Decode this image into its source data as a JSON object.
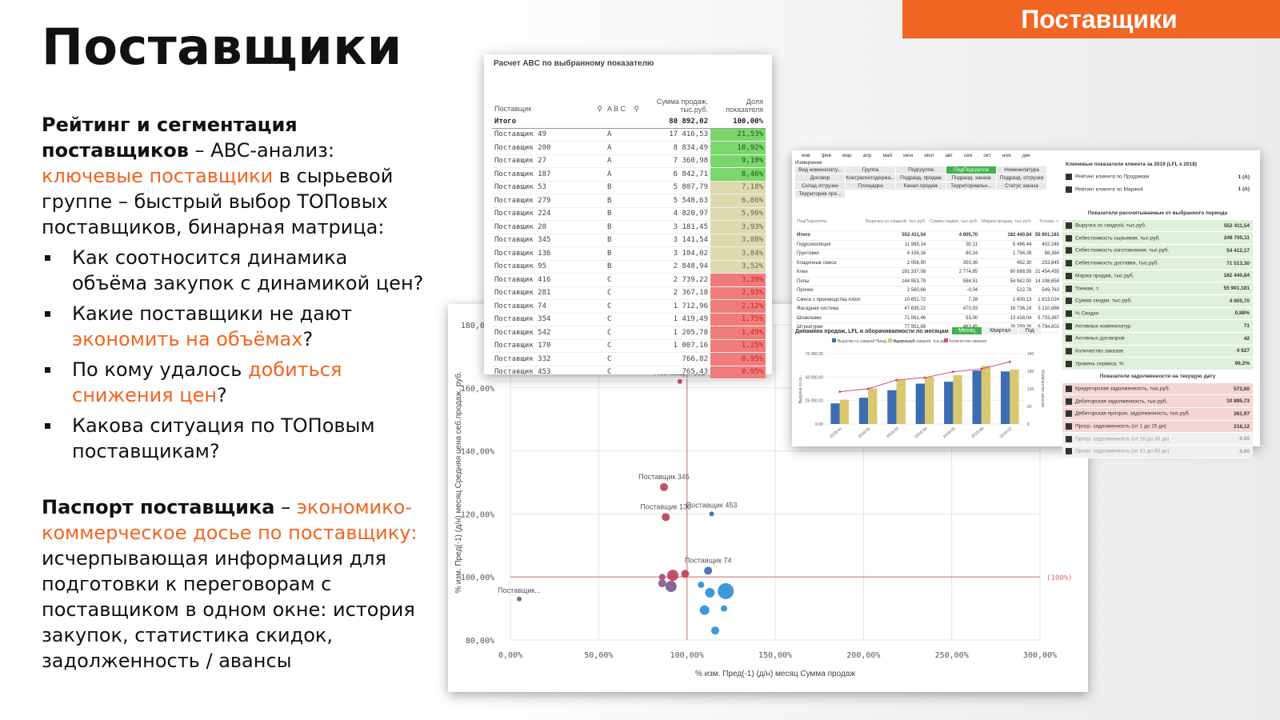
{
  "banner": "Поставщики",
  "title": "Поставщики",
  "rating": {
    "heading_bold1": "Рейтинг и сегментация",
    "heading_bold2": "поставщиков",
    "t1": " – ABC-анализ:",
    "orange1": "ключевые поставщики",
    "t2": " в сырьевой группе – быстрый выбор ТОПовых поставщиков, бинарная матрица:"
  },
  "questions": [
    {
      "a": "Как соотносится динамика объёма закупок с динамикой цен?",
      "o": "",
      "b": ""
    },
    {
      "a": "Какие поставщики не дают ",
      "o": "экономить на объёмах",
      "b": "?"
    },
    {
      "a": "По кому удалось ",
      "o": "добиться снижения цен",
      "b": "?"
    },
    {
      "a": "Какова ситуация по ТОПовым поставщикам?",
      "o": "",
      "b": ""
    }
  ],
  "passport": {
    "bold": "Паспорт поставщика",
    "dash": " – ",
    "orange": "экономико-коммерческое досье по поставщику:",
    "rest": " исчерпывающая информация для подготовки к переговорам с поставщиком в одном окне: история закупок, статистика скидок, задолженность / авансы"
  },
  "abc": {
    "title": "Расчет ABC по выбранному показателю",
    "col_supplier": "Поставщик",
    "col_abc": "A B C",
    "col_sum": "Сумма продаж, тыс.руб.",
    "col_share": "Доля показателя",
    "total_label": "Итого",
    "total_sum": "80 892,02",
    "total_share": "100,00%",
    "rows": [
      [
        "Поставщик 49",
        "A",
        "17 416,53",
        "21,53%"
      ],
      [
        "Поставщик 200",
        "A",
        "8 834,49",
        "10,92%"
      ],
      [
        "Поставщик 27",
        "A",
        "7 360,98",
        "9,10%"
      ],
      [
        "Поставщик 187",
        "A",
        "6 842,71",
        "8,46%"
      ],
      [
        "Поставщик 53",
        "B",
        "5 807,79",
        "7,18%"
      ],
      [
        "Поставщик 279",
        "B",
        "5 548,63",
        "6,86%"
      ],
      [
        "Поставщик 224",
        "B",
        "4 820,97",
        "5,96%"
      ],
      [
        "Поставщик 20",
        "B",
        "3 181,45",
        "3,93%"
      ],
      [
        "Поставщик 345",
        "B",
        "3 141,54",
        "3,88%"
      ],
      [
        "Поставщик 136",
        "B",
        "3 104,02",
        "3,84%"
      ],
      [
        "Поставщик 95",
        "B",
        "2 848,94",
        "3,52%"
      ],
      [
        "Поставщик 416",
        "C",
        "2 739,22",
        "3,39%"
      ],
      [
        "Поставщик 281",
        "C",
        "2 367,18",
        "2,93%"
      ],
      [
        "Поставщик 74",
        "C",
        "1 712,96",
        "2,12%"
      ],
      [
        "Поставщик 354",
        "C",
        "1 419,49",
        "1,75%"
      ],
      [
        "Поставщик 542",
        "C",
        "1 205,78",
        "1,49%"
      ],
      [
        "Поставщик 170",
        "C",
        "1 007,16",
        "1,25%"
      ],
      [
        "Поставщик 332",
        "C",
        "766,82",
        "0,95%"
      ],
      [
        "Поставщик 453",
        "C",
        "765,43",
        "0,95%"
      ]
    ],
    "colors": {
      "A": "#7bd66b",
      "B": "#dedaae",
      "C": "#f07b7b"
    }
  },
  "scatter": {
    "xlabel": "% изм. Пред(-1) (д/н) месяц Сумма продаж",
    "ylabel": "% изм. Пред(-1) (д/н) месяц Средняя цена себ.продаж, руб.",
    "ref_label": "(100%)",
    "x_ticks": [
      "0,00%",
      "50,00%",
      "100,00%",
      "150,00%",
      "200,00%",
      "250,00%",
      "300,00%"
    ],
    "y_ticks": [
      "80,00%",
      "100,00%",
      "120,00%",
      "140,00%",
      "160,00%",
      "180,00%"
    ],
    "labels": [
      "Поставщик 332",
      "Поставщик 345",
      "Поставщик 136",
      "Поставщик 453",
      "Поставщик 74",
      "Поставщик..."
    ]
  },
  "chart_data": {
    "type": "scatter",
    "xlabel": "% изм. Пред(-1) (д/н) месяц Сумма продаж",
    "ylabel": "% изм. Пред(-1) (д/н) месяц Средняя цена себ.продаж, руб.",
    "xlim": [
      0,
      300
    ],
    "ylim": [
      80,
      180
    ],
    "points": [
      {
        "label": "Поставщик 332",
        "x": 96,
        "y": 162,
        "r": 3,
        "c": "#c0405a"
      },
      {
        "label": "Поставщик 345",
        "x": 87,
        "y": 128.5,
        "r": 5,
        "c": "#c0405a"
      },
      {
        "label": "Поставщик 136",
        "x": 88,
        "y": 119,
        "r": 5,
        "c": "#c0405a"
      },
      {
        "label": "Поставщик 453",
        "x": 114,
        "y": 120,
        "r": 3,
        "c": "#3c6db0"
      },
      {
        "label": "Поставщик 74",
        "x": 112,
        "y": 102,
        "r": 5,
        "c": "#3c6db0"
      },
      {
        "label": "Поставщик...",
        "x": 5,
        "y": 93,
        "r": 3,
        "c": "#7a5a8a"
      },
      {
        "label": "",
        "x": 86,
        "y": 100,
        "r": 4,
        "c": "#a04a7a"
      },
      {
        "label": "",
        "x": 92,
        "y": 100.5,
        "r": 7,
        "c": "#c0405a"
      },
      {
        "label": "",
        "x": 99,
        "y": 101,
        "r": 5,
        "c": "#c0405a"
      },
      {
        "label": "",
        "x": 86,
        "y": 98,
        "r": 5,
        "c": "#8a5a8a"
      },
      {
        "label": "",
        "x": 91,
        "y": 97,
        "r": 7,
        "c": "#7a5a8a"
      },
      {
        "label": "",
        "x": 108,
        "y": 97.5,
        "r": 4,
        "c": "#2e8fd8"
      },
      {
        "label": "",
        "x": 113,
        "y": 95,
        "r": 6,
        "c": "#2e8fd8"
      },
      {
        "label": "",
        "x": 122,
        "y": 95.5,
        "r": 10,
        "c": "#2e8fd8"
      },
      {
        "label": "",
        "x": 110,
        "y": 89.5,
        "r": 6,
        "c": "#2e8fd8"
      },
      {
        "label": "",
        "x": 121,
        "y": 90,
        "r": 4,
        "c": "#2e8fd8"
      },
      {
        "label": "",
        "x": 116,
        "y": 83,
        "r": 5,
        "c": "#2e8fd8"
      }
    ],
    "ref_x": 100,
    "ref_y": 100
  },
  "dash": {
    "months": [
      "янв",
      "фев",
      "мар",
      "апр",
      "май",
      "июн",
      "июл",
      "авг",
      "сен",
      "окт",
      "ноя",
      "дек"
    ],
    "measure": "Измерение",
    "filters": [
      "Вид номенклату...",
      "Группа",
      "Подгруппа",
      "ПодПодгруппа",
      "Номенклатура",
      "Договор",
      "Контрагентодержа...",
      "Подразд. продаж",
      "Подразд. заказа",
      "Подразд. отгрузки",
      "Склад отгрузки",
      "Площадка",
      "Канал продаж",
      "Территориальн...",
      "Статус заказа",
      "Территория про..."
    ],
    "selected_filter": "ПодПодгруппа",
    "mini_head": [
      "ПодПодгруппа",
      "Выручка со скидкой, тыс.руб.",
      "Сумма скидки, тыс.руб.",
      "Маржа продаж, тыс.руб.",
      "Тоннаж, т."
    ],
    "mini_rows": [
      [
        "Итого",
        "552 411,54",
        "4 905,70",
        "182 440,84",
        "55 901,181"
      ],
      [
        "Гидроизоляция",
        "11 965,14",
        "92,11",
        "5 496,44",
        "402,246"
      ],
      [
        "Грунтовки",
        "4 156,16",
        "80,24",
        "1 794,28",
        "88,384"
      ],
      [
        "Кладочные смеси",
        "2 056,90",
        "350,36",
        "452,30",
        "253,845"
      ],
      [
        "Клеи",
        "181 337,08",
        "2 774,85",
        "60 688,59",
        "21 454,455"
      ],
      [
        "Полы",
        "144 953,79",
        "584,51",
        "54 942,00",
        "14 198,654"
      ],
      [
        "Прочее",
        "2 560,66",
        "-0,04",
        "522,78",
        "549,763"
      ],
      [
        "Смеси с производства Axton",
        "10 651,72",
        "7,28",
        "1 600,13",
        "1 613,024"
      ],
      [
        "Фасадная система",
        "47 835,22",
        "470,93",
        "16 736,24",
        "3 210,888"
      ],
      [
        "Шпаклевки",
        "71 061,46",
        "53,00",
        "13 418,04",
        "5 733,387"
      ],
      [
        "Штукатурки",
        "77 951,89",
        "483,45",
        "26 789,38",
        "9 794,601"
      ]
    ],
    "kpi_title": "Ключевые показатели клиента за 2019 (LFL к 2018)",
    "kpi_top": [
      [
        "Рейтинг клиента по Продажам",
        "1 (A)"
      ],
      [
        "Рейтинг клиента по Марже4",
        "1 (A)"
      ]
    ],
    "period_title": "Показатели рассчитываемые от выбранного периода",
    "period": [
      [
        "Выручка со скидкой, тыс.руб.",
        "552 411,54"
      ],
      [
        "Себестоимость сырьевая, тыс.руб.",
        "248 705,11"
      ],
      [
        "Себестоимость изготовления, тыс.руб.",
        "54 412,17"
      ],
      [
        "Себестоимость доставки, тыс.руб.",
        "71 513,30"
      ],
      [
        "Маржа продаж, тыс.руб.",
        "182 440,84"
      ],
      [
        "Тоннаж, т.",
        "55 901,181"
      ],
      [
        "Сумма скидки, тыс.руб.",
        "4 905,70"
      ],
      [
        "% Скидки",
        "0,88%"
      ],
      [
        "Активных номенклатур",
        "71"
      ],
      [
        "Активных договоров",
        "42"
      ],
      [
        "Количество заказов",
        "4 927"
      ],
      [
        "Уровень сервиса, %",
        "99,2%"
      ]
    ],
    "debt_title": "Показатели задолженности на текущую дату",
    "debt": [
      [
        "Кредиторская задолженность, тыс.руб.",
        "572,60",
        "r"
      ],
      [
        "Дебиторская задолженность, тыс.руб.",
        "10 895,73",
        "r"
      ],
      [
        "Дебиторская просроч. задолженность, тыс.руб.",
        "261,97",
        "r"
      ],
      [
        "Проср. задолженность (от 1 до 15 дн)",
        "216,12",
        "r"
      ],
      [
        "Проср. задолженность (от 16 до 30 дн)",
        "0,00",
        "gr"
      ],
      [
        "Проср. задолженность (от 31 до 60 дн)",
        "0,00",
        "gr"
      ]
    ],
    "bar_title": "Динамика продаж, LFL и оборачиваемости по месяцам",
    "tabs": [
      "Месяц",
      "Квартал",
      "Год"
    ],
    "legend": [
      "Выручка со скидкой Пред(-1) год, тыс.руб.",
      "Выручка со скидкой, тыс.руб.",
      "Количество заказов"
    ],
    "y_ticks": [
      "0,00",
      "25 000,00",
      "50 000,00",
      "75 000,00"
    ],
    "y2_ticks": [
      "0",
      "60",
      "120",
      "180",
      "240"
    ],
    "bar_y_label": "Выручка со ск...",
    "bar_y2_label": "Количество заказов",
    "months_x": [
      "2019-01",
      "2019-02",
      "2019-03",
      "2019-04",
      "2019-05",
      "2019-06",
      "2019-07"
    ],
    "prev": [
      22000,
      28000,
      36000,
      43000,
      45000,
      57000,
      56000
    ],
    "cur": [
      26000,
      38000,
      47000,
      50000,
      52000,
      62000,
      58000
    ],
    "orders": [
      110,
      120,
      150,
      158,
      178,
      188,
      212
    ]
  }
}
